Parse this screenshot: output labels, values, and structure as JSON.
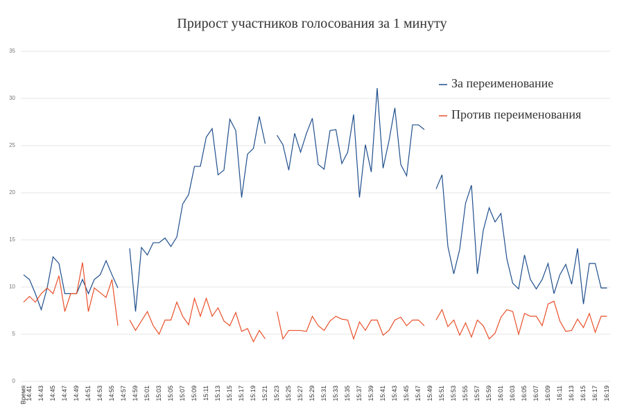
{
  "chart_data": {
    "type": "line",
    "title": "Прирост участников голосования за 1 минуту",
    "categories": [
      "Время",
      "14:41",
      null,
      "14:43",
      null,
      "14:45",
      null,
      "14:47",
      null,
      "14:49",
      null,
      "14:51",
      null,
      "14:53",
      null,
      "14:55",
      null,
      "14:57",
      null,
      "14:59",
      null,
      "15:01",
      null,
      "15:03",
      null,
      "15:05",
      null,
      "15:07",
      null,
      "15:09",
      null,
      "15:11",
      null,
      "15:13",
      null,
      "15:15",
      null,
      "15:17",
      null,
      "15:19",
      null,
      "15:21",
      null,
      "15:23",
      null,
      "15:25",
      null,
      "15:27",
      null,
      "15:29",
      null,
      "15:31",
      null,
      "15:33",
      null,
      "15:35",
      null,
      "15:37",
      null,
      "15:39",
      null,
      "15:41",
      null,
      "15:43",
      null,
      "15:45",
      null,
      "15:47",
      null,
      "15:49",
      null,
      "15:51",
      null,
      "15:53",
      null,
      "15:55",
      null,
      "15:57",
      null,
      "15:59",
      null,
      "16:01",
      null,
      "16:03",
      null,
      "16:05",
      null,
      "16:07",
      null,
      "16:09",
      null,
      "16:11",
      null,
      "16:13",
      null,
      "16:15",
      null,
      "16:17",
      null,
      "16:19"
    ],
    "series": [
      {
        "name": "За переименование",
        "color": "#1f4e8c",
        "values": [
          11.3,
          10.8,
          9.3,
          7.6,
          9.9,
          13.2,
          12.5,
          9.3,
          9.3,
          9.3,
          10.8,
          9.3,
          10.8,
          11.3,
          12.8,
          11.3,
          9.9,
          null,
          14.1,
          7.4,
          14.2,
          13.4,
          14.7,
          14.7,
          15.2,
          14.3,
          15.3,
          18.8,
          19.8,
          22.8,
          22.8,
          25.9,
          26.8,
          21.9,
          22.4,
          27.8,
          26.6,
          19.5,
          24.1,
          24.7,
          28.1,
          25.2,
          null,
          26.1,
          25.1,
          22.4,
          26.3,
          24.3,
          26.3,
          27.9,
          23.0,
          22.5,
          26.6,
          26.7,
          23.1,
          24.3,
          28.3,
          19.5,
          25.1,
          22.2,
          31.1,
          22.6,
          25.5,
          29.0,
          23.0,
          21.8,
          27.2,
          27.2,
          26.7,
          null,
          20.4,
          21.9,
          14.3,
          11.4,
          14.0,
          18.9,
          20.8,
          11.4,
          16.0,
          18.4,
          16.9,
          17.8,
          13.0,
          10.4,
          9.8,
          13.4,
          10.8,
          9.8,
          10.8,
          12.5,
          9.3,
          11.3,
          12.4,
          10.3,
          14.1,
          8.2,
          12.5,
          12.5,
          9.9,
          9.9
        ]
      },
      {
        "name": "Против переименования",
        "color": "#e8502a",
        "values": [
          8.4,
          9.0,
          8.4,
          9.3,
          9.9,
          9.3,
          11.2,
          7.4,
          9.3,
          9.3,
          12.6,
          7.4,
          9.9,
          9.4,
          8.9,
          10.8,
          5.9,
          null,
          6.5,
          5.4,
          6.4,
          7.4,
          5.9,
          5.0,
          6.5,
          6.5,
          8.4,
          6.9,
          6.0,
          8.8,
          6.9,
          8.8,
          6.9,
          7.8,
          6.4,
          5.9,
          7.3,
          5.3,
          5.6,
          4.2,
          5.4,
          4.5,
          null,
          7.4,
          4.5,
          5.4,
          5.4,
          5.4,
          5.3,
          6.9,
          5.9,
          5.4,
          6.4,
          6.9,
          6.6,
          6.5,
          4.5,
          6.3,
          5.4,
          6.5,
          6.5,
          4.9,
          5.4,
          6.5,
          6.8,
          5.9,
          6.5,
          6.5,
          5.9,
          null,
          6.5,
          7.6,
          5.8,
          6.5,
          4.9,
          6.2,
          4.7,
          6.5,
          5.9,
          4.5,
          5.1,
          6.8,
          7.6,
          7.4,
          5.0,
          7.2,
          6.9,
          6.9,
          5.9,
          8.2,
          8.5,
          6.4,
          5.3,
          5.4,
          6.6,
          5.7,
          7.2,
          5.2,
          6.9,
          6.9
        ]
      }
    ],
    "ylim": [
      0,
      35
    ],
    "yticks": [
      0,
      5,
      10,
      15,
      20,
      25,
      30,
      35
    ],
    "grid": true,
    "legend": "upper right"
  }
}
